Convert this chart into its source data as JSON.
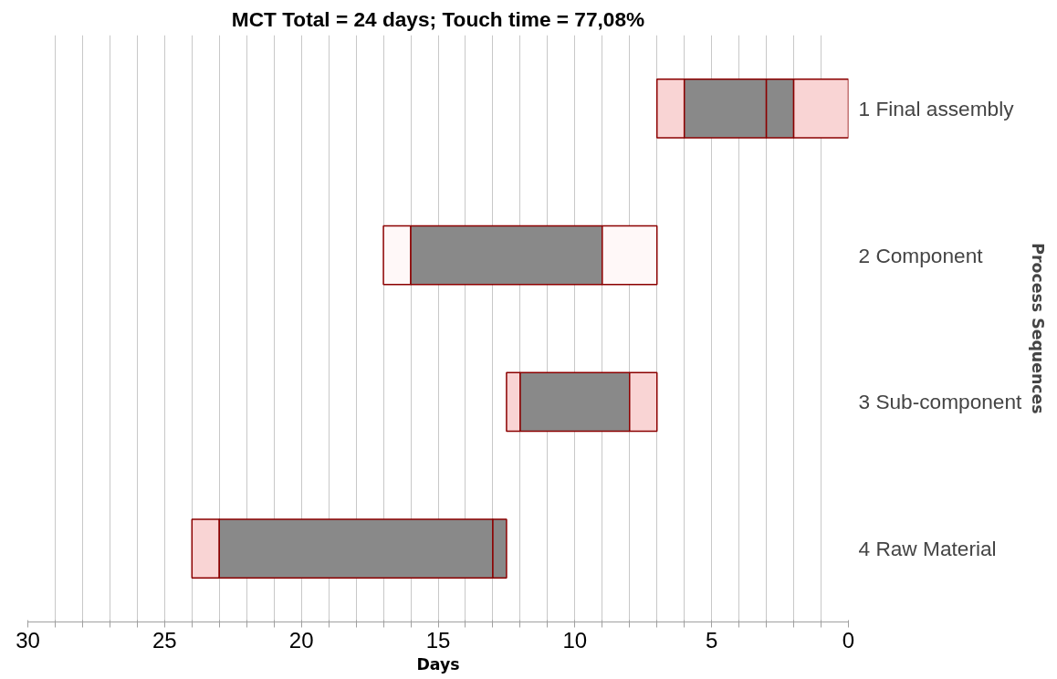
{
  "chart_data": {
    "type": "bar",
    "orientation": "horizontal",
    "title": "MCT Total = 24 days; Touch time = 77,08%",
    "xlabel": "Days",
    "ylabel": "Process Sequences",
    "categories": [
      "1 Final assembly",
      "2 Component",
      "3 Sub-component",
      "4 Raw Material"
    ],
    "series": [
      {
        "colors": [
          "#f9d4d4",
          "#fff8f8",
          "#f9d4d4",
          "#f9d4d4"
        ],
        "base": [
          6,
          16,
          12,
          23
        ],
        "values": [
          1,
          1,
          0.5,
          1
        ]
      },
      {
        "color": "#898989",
        "base": [
          3,
          9,
          8,
          13
        ],
        "values": [
          3,
          7,
          4,
          10
        ]
      },
      {
        "color": "#898989",
        "base": [
          2,
          null,
          null,
          12.5
        ],
        "values": [
          1,
          null,
          null,
          0.5
        ]
      },
      {
        "colors": [
          "#f9d4d4",
          "#fff8f8",
          "#f9d4d4",
          null
        ],
        "base": [
          0,
          7,
          7,
          null
        ],
        "values": [
          2,
          2,
          1,
          null
        ]
      }
    ],
    "xlim": [
      30,
      0
    ],
    "xticks": [
      0,
      {
        "value": 1,
        "label": null
      },
      {
        "value": 2,
        "label": null
      },
      {
        "value": 3,
        "label": null
      },
      {
        "value": 4,
        "label": null
      },
      5,
      {
        "value": 6,
        "label": null
      },
      {
        "value": 7,
        "label": null
      },
      {
        "value": 8,
        "label": null
      },
      {
        "value": 9,
        "label": null
      },
      10,
      {
        "value": 11,
        "label": null
      },
      {
        "value": 12,
        "label": null
      },
      {
        "value": 13,
        "label": null
      },
      {
        "value": 14,
        "label": null
      },
      15,
      {
        "value": 16,
        "label": null
      },
      {
        "value": 17,
        "label": null
      },
      {
        "value": 18,
        "label": null
      },
      {
        "value": 19,
        "label": null
      },
      20,
      {
        "value": 21,
        "label": null
      },
      {
        "value": 22,
        "label": null
      },
      {
        "value": 23,
        "label": null
      },
      {
        "value": 24,
        "label": null
      },
      25,
      {
        "value": 26,
        "label": null
      },
      {
        "value": 27,
        "label": null
      },
      {
        "value": 28,
        "label": null
      },
      {
        "value": 29,
        "label": null
      },
      30
    ],
    "grid": "x"
  }
}
